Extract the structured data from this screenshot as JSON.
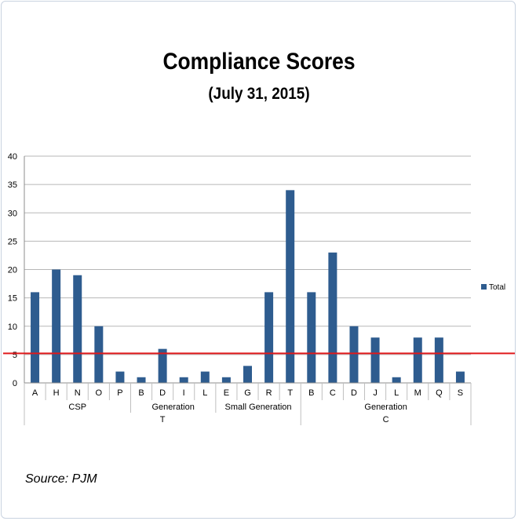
{
  "chart_data": {
    "type": "bar",
    "title": "Compliance Scores",
    "subtitle": "(July 31, 2015)",
    "categories": [
      "A",
      "H",
      "N",
      "O",
      "P",
      "B",
      "D",
      "I",
      "L",
      "E",
      "G",
      "R",
      "T",
      "B",
      "C",
      "D",
      "J",
      "L",
      "M",
      "Q",
      "S"
    ],
    "series": [
      {
        "name": "Total",
        "values": [
          16,
          20,
          19,
          10,
          2,
          1,
          6,
          1,
          2,
          1,
          3,
          16,
          34,
          16,
          23,
          10,
          8,
          1,
          8,
          8,
          2
        ],
        "color": "#2e5c8f"
      }
    ],
    "ylim": [
      0,
      40
    ],
    "yticks": [
      0,
      5,
      10,
      15,
      20,
      25,
      30,
      35,
      40
    ],
    "grid": true,
    "legend": "right",
    "reference_line": {
      "value": 5.2,
      "color": "#e0191b"
    },
    "group_labels": [
      {
        "label": "CSP",
        "start": 0,
        "end": 4
      },
      {
        "label": "Generation",
        "start": 5,
        "end": 8
      },
      {
        "label": "Small Generation",
        "start": 9,
        "end": 12
      },
      {
        "label": "Generation",
        "start": 13,
        "end": 20
      }
    ],
    "super_group_labels": [
      {
        "label": "T",
        "start": 0,
        "end": 12
      },
      {
        "label": "C",
        "start": 13,
        "end": 20
      }
    ]
  },
  "source": "Source: PJM"
}
